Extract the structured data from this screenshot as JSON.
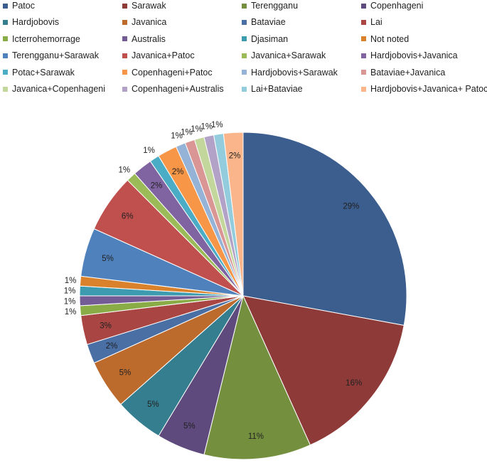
{
  "chart_data": {
    "type": "pie",
    "title": "",
    "legend_position": "top",
    "slices": [
      {
        "label": "Patoc",
        "value": 29,
        "value_label": "29%",
        "color": "#3b5e8e"
      },
      {
        "label": "Sarawak",
        "value": 16,
        "value_label": "16%",
        "color": "#8e3a38"
      },
      {
        "label": "Terengganu",
        "value": 11,
        "value_label": "11%",
        "color": "#74903f"
      },
      {
        "label": "Copenhageni",
        "value": 5,
        "value_label": "5%",
        "color": "#5e4a7d"
      },
      {
        "label": "Hardjobovis",
        "value": 5,
        "value_label": "5%",
        "color": "#357e90"
      },
      {
        "label": "Javanica",
        "value": 5,
        "value_label": "5%",
        "color": "#bd6b2d"
      },
      {
        "label": "Bataviae",
        "value": 2,
        "value_label": "2%",
        "color": "#4a6fa5"
      },
      {
        "label": "Lai",
        "value": 3,
        "value_label": "3%",
        "color": "#a94543"
      },
      {
        "label": "Icterrohemorrage",
        "value": 1,
        "value_label": "1%",
        "color": "#8aac47"
      },
      {
        "label": "Australis",
        "value": 1,
        "value_label": "1%",
        "color": "#735b95"
      },
      {
        "label": "Djasiman",
        "value": 1,
        "value_label": "1%",
        "color": "#3d9bb0"
      },
      {
        "label": "Not noted",
        "value": 1,
        "value_label": "1%",
        "color": "#d9822b"
      },
      {
        "label": "Terengganu+Sarawak",
        "value": 5,
        "value_label": "5%",
        "color": "#4f81bd"
      },
      {
        "label": "Javanica+Patoc",
        "value": 6,
        "value_label": "6%",
        "color": "#c0504d"
      },
      {
        "label": "Javanica+Sarawak",
        "value": 1,
        "value_label": "1%",
        "color": "#9bbb59"
      },
      {
        "label": "Hardjobovis+Javanica",
        "value": 2,
        "value_label": "2%",
        "color": "#8064a2"
      },
      {
        "label": "Potac+Sarawak",
        "value": 1,
        "value_label": "1%",
        "color": "#4bacc6"
      },
      {
        "label": "Copenhageni+Patoc",
        "value": 2,
        "value_label": "2%",
        "color": "#f79646"
      },
      {
        "label": "Hardjobovis+Sarawak",
        "value": 1,
        "value_label": "1%",
        "color": "#95b3d7"
      },
      {
        "label": "Bataviae+Javanica",
        "value": 1,
        "value_label": "1%",
        "color": "#d99694"
      },
      {
        "label": "Javanica+Copenhageni",
        "value": 1,
        "value_label": "1%",
        "color": "#c3d69b"
      },
      {
        "label": "Copenhageni+Australis",
        "value": 1,
        "value_label": "1%",
        "color": "#b2a2c7"
      },
      {
        "label": "Lai+Bataviae",
        "value": 1,
        "value_label": "1%",
        "color": "#93cddd"
      },
      {
        "label": "Hardjobovis+Javanica+ Patoc",
        "value": 2,
        "value_label": "2%",
        "color": "#fab68a"
      }
    ]
  }
}
